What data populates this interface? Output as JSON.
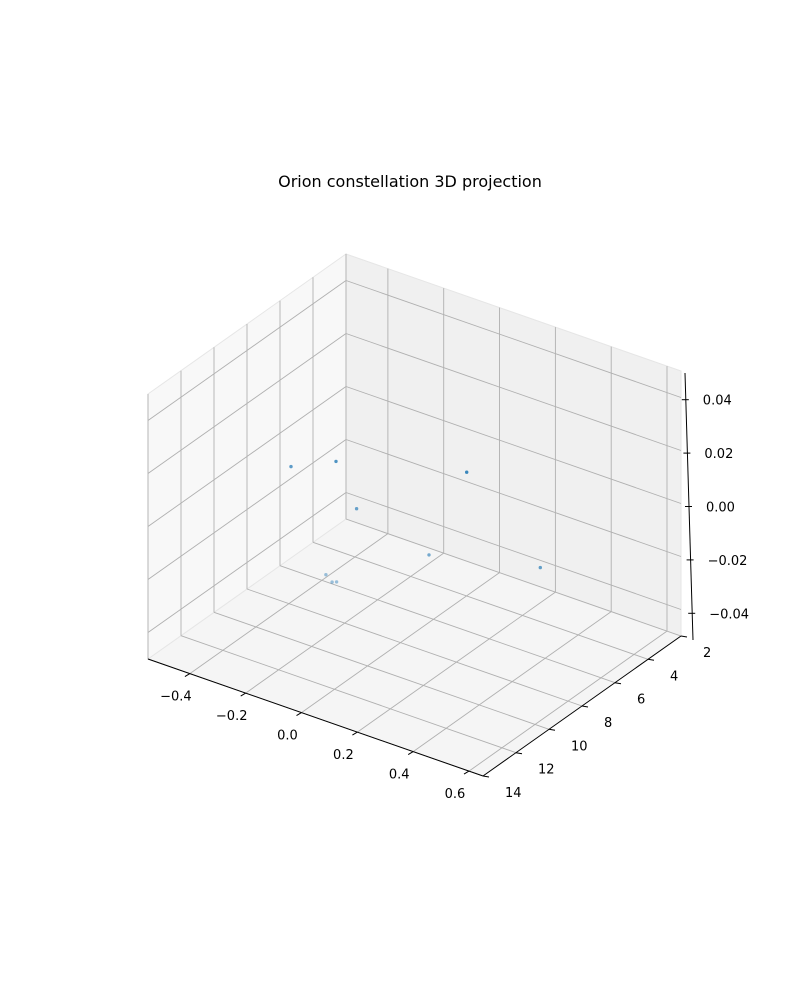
{
  "chart_data": {
    "type": "scatter",
    "projection": "3d",
    "title": "Orion constellation 3D projection",
    "xlabel": "",
    "ylabel": "",
    "zlabel": "",
    "xlim": [
      -0.55,
      0.65
    ],
    "ylim": [
      2,
      14
    ],
    "zlim": [
      -0.05,
      0.05
    ],
    "x_ticks": [
      -0.4,
      -0.2,
      0.0,
      0.2,
      0.4,
      0.6
    ],
    "x_tick_labels": [
      "−0.4",
      "−0.2",
      "0.0",
      "0.2",
      "0.4",
      "0.6"
    ],
    "y_ticks": [
      2,
      4,
      6,
      8,
      10,
      12,
      14
    ],
    "y_tick_labels": [
      "2",
      "4",
      "6",
      "8",
      "10",
      "12",
      "14"
    ],
    "z_ticks": [
      -0.04,
      -0.02,
      0.0,
      0.02,
      0.04
    ],
    "z_tick_labels": [
      "−0.04",
      "−0.02",
      "0.00",
      "0.02",
      "0.04"
    ],
    "grid": true,
    "marker_color": "#1f77b4",
    "points": [
      {
        "x": -0.41,
        "y": 7.7,
        "z": 0.0
      },
      {
        "x": -0.32,
        "y": 6.5,
        "z": 0.0
      },
      {
        "x": -0.11,
        "y": 8.8,
        "z": 0.0
      },
      {
        "x": 0.03,
        "y": 4.5,
        "z": 0.0
      },
      {
        "x": 0.22,
        "y": 10.0,
        "z": 0.0
      },
      {
        "x": 0.04,
        "y": 13.2,
        "z": 0.0
      },
      {
        "x": 0.08,
        "y": 13.5,
        "z": 0.0
      },
      {
        "x": 0.09,
        "y": 13.4,
        "z": 0.0
      },
      {
        "x": 0.53,
        "y": 8.5,
        "z": 0.0
      }
    ]
  }
}
